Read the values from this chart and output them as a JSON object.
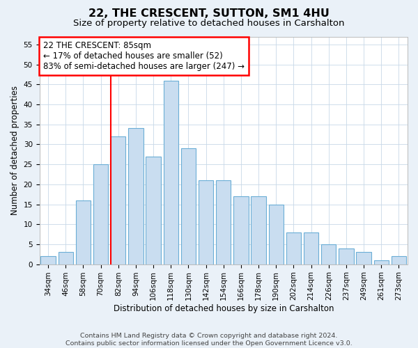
{
  "title": "22, THE CRESCENT, SUTTON, SM1 4HU",
  "subtitle": "Size of property relative to detached houses in Carshalton",
  "xlabel": "Distribution of detached houses by size in Carshalton",
  "ylabel": "Number of detached properties",
  "footer_line1": "Contains HM Land Registry data © Crown copyright and database right 2024.",
  "footer_line2": "Contains public sector information licensed under the Open Government Licence v3.0.",
  "categories": [
    "34sqm",
    "46sqm",
    "58sqm",
    "70sqm",
    "82sqm",
    "94sqm",
    "106sqm",
    "118sqm",
    "130sqm",
    "142sqm",
    "154sqm",
    "166sqm",
    "178sqm",
    "190sqm",
    "202sqm",
    "214sqm",
    "226sqm",
    "237sqm",
    "249sqm",
    "261sqm",
    "273sqm"
  ],
  "values": [
    2,
    3,
    16,
    25,
    32,
    34,
    27,
    46,
    29,
    21,
    21,
    17,
    17,
    15,
    8,
    8,
    5,
    4,
    3,
    1,
    2
  ],
  "bar_color": "#c9ddf0",
  "bar_edge_color": "#6baed6",
  "annotation_text_lines": [
    "22 THE CRESCENT: 85sqm",
    "← 17% of detached houses are smaller (52)",
    "83% of semi-detached houses are larger (247) →"
  ],
  "annotation_box_color": "white",
  "annotation_box_edge_color": "red",
  "red_line_color": "red",
  "ylim": [
    0,
    57
  ],
  "yticks": [
    0,
    5,
    10,
    15,
    20,
    25,
    30,
    35,
    40,
    45,
    50,
    55
  ],
  "bg_color": "#eaf1f8",
  "plot_bg_color": "#ffffff",
  "grid_color": "#c8d8e8",
  "title_fontsize": 11.5,
  "subtitle_fontsize": 9.5,
  "axis_label_fontsize": 8.5,
  "tick_fontsize": 7.5,
  "footer_fontsize": 6.8,
  "annotation_fontsize": 8.5,
  "red_line_bin_index": 4
}
